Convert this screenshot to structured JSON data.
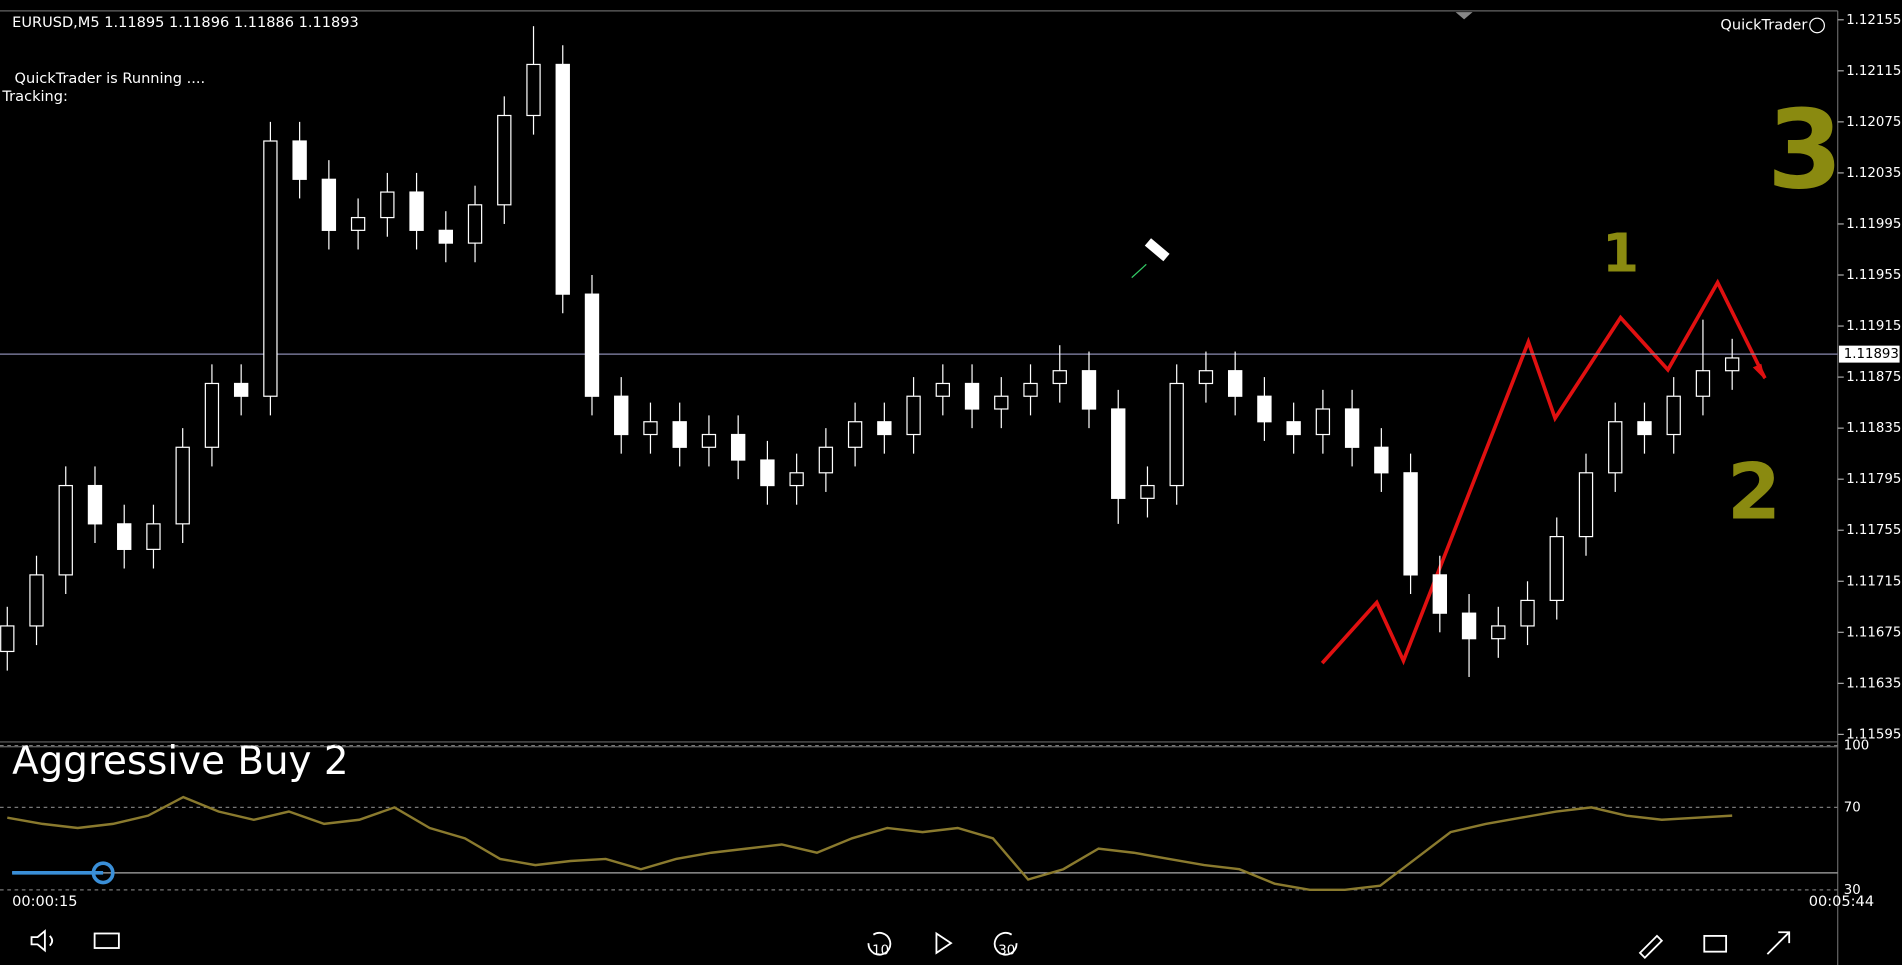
{
  "header": {
    "symbol_line": "EURUSD,M5  1.11895 1.11896 1.11886 1.11893",
    "status": "QuickTrader is Running ....",
    "tracking": "Tracking:",
    "brand": "QuickTrader"
  },
  "chart_data": [
    {
      "type": "candlestick",
      "ylim": [
        1.11591,
        1.12161
      ],
      "yticks": [
        1.12155,
        1.12115,
        1.12075,
        1.12035,
        1.11995,
        1.11955,
        1.11915,
        1.11875,
        1.11835,
        1.11795,
        1.11755,
        1.11715,
        1.11675,
        1.11635,
        1.11595
      ],
      "current_price": 1.11893,
      "open": [
        1.1166,
        1.1168,
        1.1172,
        1.1179,
        1.1176,
        1.1174,
        1.1176,
        1.1182,
        1.1187,
        1.1186,
        1.1206,
        1.1203,
        1.1199,
        1.12,
        1.1202,
        1.1199,
        1.1198,
        1.1201,
        1.1208,
        1.1212,
        1.1194,
        1.1186,
        1.1183,
        1.1184,
        1.1182,
        1.1183,
        1.1181,
        1.1179,
        1.118,
        1.1182,
        1.1184,
        1.1183,
        1.1186,
        1.1187,
        1.1185,
        1.1186,
        1.1187,
        1.1188,
        1.1185,
        1.1178,
        1.1179,
        1.1187,
        1.1188,
        1.1186,
        1.1184,
        1.1183,
        1.1185,
        1.1182,
        1.118,
        1.1172,
        1.1169,
        1.1167,
        1.1168,
        1.117,
        1.1175,
        1.118,
        1.1184,
        1.1183,
        1.1186,
        1.1188
      ],
      "high": [
        1.11695,
        1.11735,
        1.11805,
        1.11805,
        1.11775,
        1.11775,
        1.11835,
        1.11885,
        1.11885,
        1.12075,
        1.12075,
        1.12045,
        1.12015,
        1.12035,
        1.12035,
        1.12005,
        1.12025,
        1.12095,
        1.1215,
        1.12135,
        1.11955,
        1.11875,
        1.11855,
        1.11855,
        1.11845,
        1.11845,
        1.11825,
        1.11815,
        1.11835,
        1.11855,
        1.11855,
        1.11875,
        1.11885,
        1.11885,
        1.11875,
        1.11885,
        1.119,
        1.11895,
        1.11865,
        1.11805,
        1.11885,
        1.11895,
        1.11895,
        1.11875,
        1.11855,
        1.11865,
        1.11865,
        1.11835,
        1.11815,
        1.11735,
        1.11705,
        1.11695,
        1.11715,
        1.11765,
        1.11815,
        1.11855,
        1.11855,
        1.11875,
        1.1192,
        1.11905
      ],
      "low": [
        1.11645,
        1.11665,
        1.11705,
        1.11745,
        1.11725,
        1.11725,
        1.11745,
        1.11805,
        1.11845,
        1.11845,
        1.12015,
        1.11975,
        1.11975,
        1.11985,
        1.11975,
        1.11965,
        1.11965,
        1.11995,
        1.12065,
        1.11925,
        1.11845,
        1.11815,
        1.11815,
        1.11805,
        1.11805,
        1.11795,
        1.11775,
        1.11775,
        1.11785,
        1.11805,
        1.11815,
        1.11815,
        1.11845,
        1.11835,
        1.11835,
        1.11845,
        1.11855,
        1.11835,
        1.1176,
        1.11765,
        1.11775,
        1.11855,
        1.11845,
        1.11825,
        1.11815,
        1.11815,
        1.11805,
        1.11785,
        1.11705,
        1.11675,
        1.1164,
        1.11655,
        1.11665,
        1.11685,
        1.11735,
        1.11785,
        1.11815,
        1.11815,
        1.11845,
        1.11865
      ],
      "close": [
        1.1168,
        1.1172,
        1.1179,
        1.1176,
        1.1174,
        1.1176,
        1.1182,
        1.1187,
        1.1186,
        1.1206,
        1.1203,
        1.1199,
        1.12,
        1.1202,
        1.1199,
        1.1198,
        1.1201,
        1.1208,
        1.1212,
        1.1194,
        1.1186,
        1.1183,
        1.1184,
        1.1182,
        1.1183,
        1.1181,
        1.1179,
        1.118,
        1.1182,
        1.1184,
        1.1183,
        1.1186,
        1.1187,
        1.1185,
        1.1186,
        1.1187,
        1.1188,
        1.1185,
        1.1178,
        1.1179,
        1.1187,
        1.1188,
        1.1186,
        1.1184,
        1.1183,
        1.1185,
        1.1182,
        1.118,
        1.1172,
        1.1169,
        1.1167,
        1.1168,
        1.117,
        1.1175,
        1.118,
        1.1184,
        1.1183,
        1.1186,
        1.1188,
        1.1189
      ],
      "annotations": [
        "1",
        "2",
        "3"
      ]
    },
    {
      "type": "line",
      "ylim": [
        0,
        100
      ],
      "yticks": [
        100,
        70,
        30
      ],
      "color": "#8a7a2e",
      "values": [
        65,
        62,
        60,
        62,
        66,
        75,
        68,
        64,
        68,
        62,
        64,
        70,
        60,
        55,
        45,
        42,
        44,
        45,
        40,
        45,
        48,
        50,
        52,
        48,
        55,
        60,
        58,
        60,
        55,
        35,
        40,
        50,
        48,
        45,
        42,
        40,
        33,
        30,
        30,
        32,
        45,
        58,
        62,
        65,
        68,
        70,
        66,
        64,
        65,
        66
      ]
    }
  ],
  "video": {
    "title": "Aggressive Buy 2",
    "elapsed": "00:00:15",
    "duration": "00:05:44",
    "rewind": "10",
    "forward": "30"
  }
}
